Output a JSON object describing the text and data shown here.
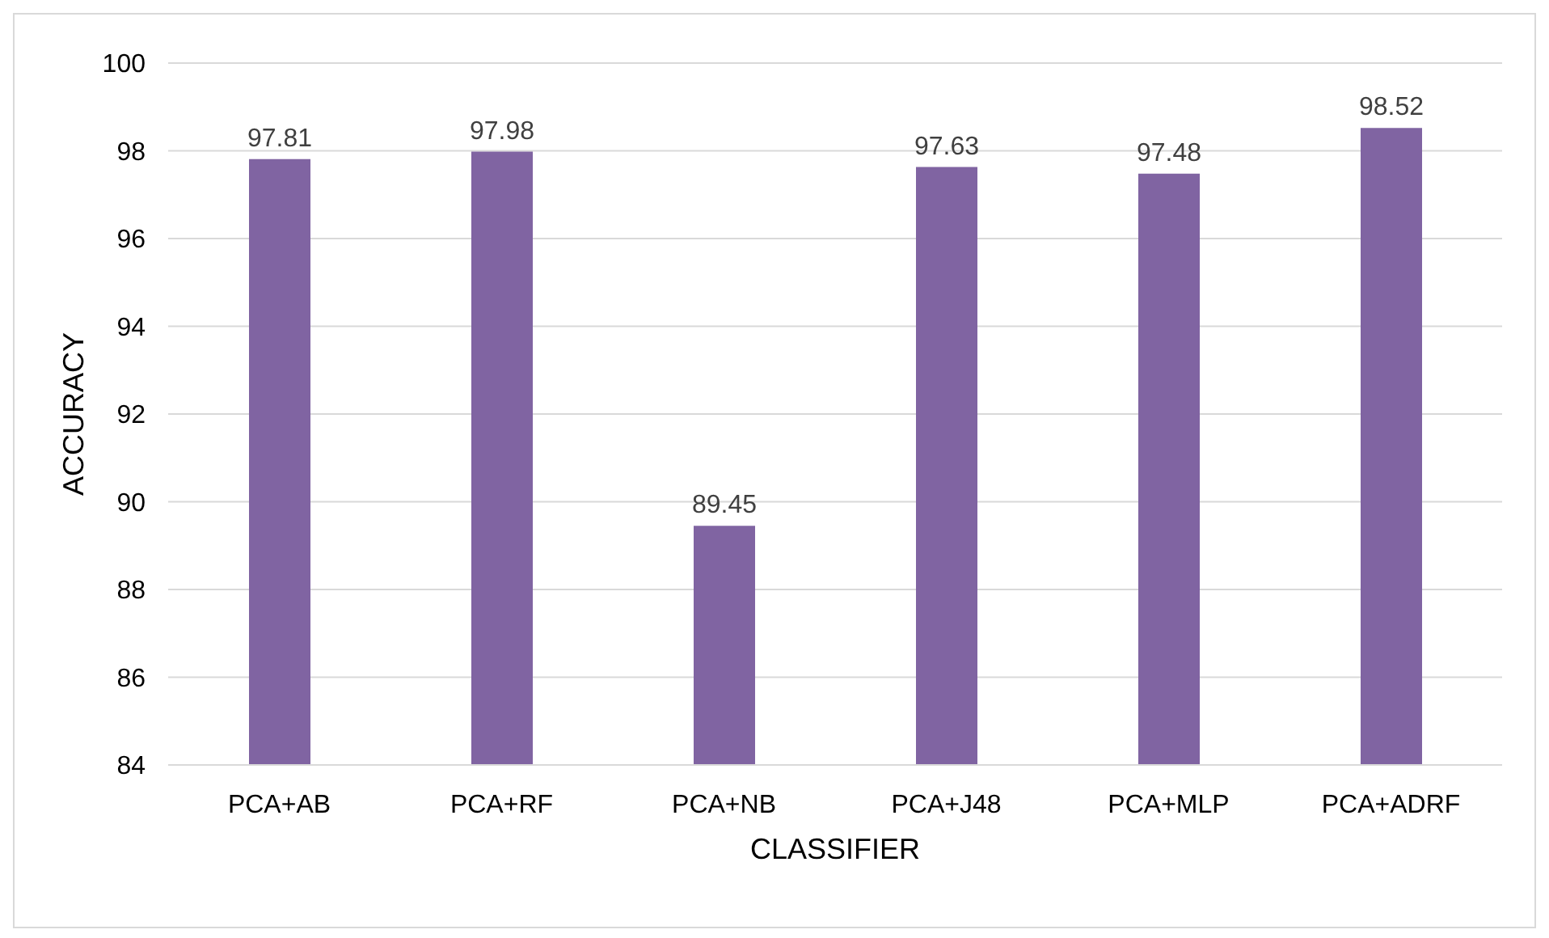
{
  "chart_data": {
    "type": "bar",
    "xlabel": "CLASSIFIER",
    "ylabel": "ACCURACY",
    "categories": [
      "PCA+AB",
      "PCA+RF",
      "PCA+NB",
      "PCA+J48",
      "PCA+MLP",
      "PCA+ADRF"
    ],
    "values": [
      97.81,
      97.98,
      89.45,
      97.63,
      97.48,
      98.52
    ],
    "color": "#8064a2",
    "ylim": [
      84,
      100
    ],
    "yticks": [
      84,
      86,
      88,
      90,
      92,
      94,
      96,
      98,
      100
    ],
    "grid": "y",
    "data_labels": true
  }
}
